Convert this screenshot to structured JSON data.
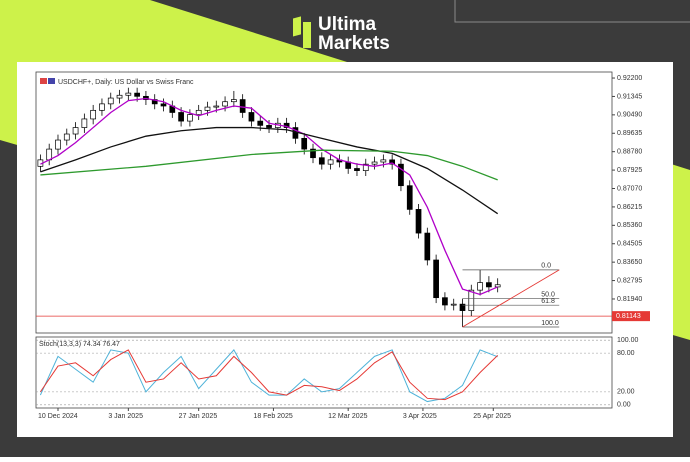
{
  "brand": {
    "line1": "Ultima",
    "line2": "Markets"
  },
  "chart_data": {
    "type": "candlestick",
    "title": "USDCHF+, Daily:  US Dollar vs Swiss Franc",
    "x": [
      -4,
      -2,
      0,
      2,
      4,
      6,
      8,
      10,
      12,
      14,
      16,
      18,
      20,
      22,
      24,
      26,
      28,
      30,
      32,
      34,
      36,
      38,
      40,
      42,
      44,
      46,
      48,
      50,
      52,
      54,
      56,
      58,
      60,
      62,
      64,
      66,
      68,
      70,
      72,
      74,
      76,
      78,
      80,
      82,
      84,
      86,
      88,
      90,
      92,
      94,
      96,
      98,
      100
    ],
    "open": [
      0.881,
      0.884,
      0.889,
      0.8932,
      0.896,
      0.899,
      0.903,
      0.907,
      0.91,
      0.9127,
      0.914,
      0.915,
      0.9135,
      0.912,
      0.91,
      0.909,
      0.906,
      0.902,
      0.905,
      0.907,
      0.9085,
      0.909,
      0.911,
      0.912,
      0.906,
      0.902,
      0.9,
      0.899,
      0.901,
      0.899,
      0.894,
      0.889,
      0.885,
      0.882,
      0.884,
      0.883,
      0.88,
      0.879,
      0.882,
      0.883,
      0.884,
      0.882,
      0.872,
      0.861,
      0.85,
      0.8375,
      0.82,
      0.8166,
      0.817,
      0.814,
      0.8235,
      0.827,
      0.825
    ],
    "high": [
      0.8865,
      0.8915,
      0.8957,
      0.8985,
      0.9015,
      0.9055,
      0.9095,
      0.9125,
      0.9152,
      0.9165,
      0.9175,
      0.9175,
      0.916,
      0.9145,
      0.9125,
      0.9115,
      0.9085,
      0.9075,
      0.9095,
      0.911,
      0.9115,
      0.9135,
      0.916,
      0.9145,
      0.9085,
      0.9045,
      0.9025,
      0.9035,
      0.9035,
      0.9015,
      0.8965,
      0.8915,
      0.8875,
      0.8865,
      0.8865,
      0.8855,
      0.8825,
      0.8845,
      0.8855,
      0.8865,
      0.8865,
      0.8845,
      0.8745,
      0.8635,
      0.8525,
      0.84,
      0.8225,
      0.8195,
      0.8195,
      0.826,
      0.8329,
      0.83,
      0.829
    ],
    "low": [
      0.8785,
      0.8815,
      0.8865,
      0.8907,
      0.8935,
      0.8965,
      0.9005,
      0.9045,
      0.9075,
      0.9102,
      0.9115,
      0.911,
      0.9095,
      0.9075,
      0.9065,
      0.9035,
      0.8995,
      0.8995,
      0.9025,
      0.9045,
      0.906,
      0.9065,
      0.9085,
      0.9035,
      0.8995,
      0.8975,
      0.8965,
      0.8965,
      0.8965,
      0.8915,
      0.8865,
      0.8825,
      0.8795,
      0.8795,
      0.8805,
      0.8775,
      0.8765,
      0.8765,
      0.8795,
      0.8805,
      0.8795,
      0.8695,
      0.8585,
      0.8475,
      0.835,
      0.8175,
      0.8141,
      0.8141,
      0.8064,
      0.8115,
      0.821,
      0.8225,
      0.8225
    ],
    "close": [
      0.884,
      0.889,
      0.8932,
      0.896,
      0.899,
      0.903,
      0.907,
      0.91,
      0.9127,
      0.914,
      0.915,
      0.9135,
      0.912,
      0.91,
      0.909,
      0.906,
      0.902,
      0.905,
      0.907,
      0.9085,
      0.909,
      0.911,
      0.912,
      0.906,
      0.902,
      0.9,
      0.899,
      0.901,
      0.899,
      0.894,
      0.889,
      0.885,
      0.882,
      0.884,
      0.883,
      0.88,
      0.879,
      0.882,
      0.883,
      0.884,
      0.882,
      0.872,
      0.861,
      0.85,
      0.8375,
      0.82,
      0.8166,
      0.817,
      0.814,
      0.8235,
      0.827,
      0.825,
      0.826
    ],
    "xlim": [
      -5,
      126
    ],
    "xticks": [
      {
        "value": 0,
        "label": "10 Dec 2024"
      },
      {
        "value": 16,
        "label": "3 Jan 2025"
      },
      {
        "value": 32,
        "label": "27 Jan 2025"
      },
      {
        "value": 49,
        "label": "18 Feb 2025"
      },
      {
        "value": 66,
        "label": "12 Mar 2025"
      },
      {
        "value": 83,
        "label": "3 Apr 2025"
      },
      {
        "value": 99,
        "label": "25 Apr 2025"
      }
    ],
    "ylim": [
      0.8036,
      0.9248
    ],
    "yticks": [
      {
        "value": 0.922,
        "label": "0.92200"
      },
      0.91345,
      {
        "value": 0.9049,
        "label": "0.90490"
      },
      0.89635,
      {
        "value": 0.8878,
        "label": "0.88780"
      },
      0.87925,
      {
        "value": 0.8707,
        "label": "0.87070"
      },
      0.86215,
      {
        "value": 0.8536,
        "label": "0.85360"
      },
      0.84505,
      {
        "value": 0.8365,
        "label": "0.83650"
      },
      0.82795,
      {
        "value": 0.8194,
        "label": "0.81940"
      }
    ],
    "lines": [
      {
        "color": "#b000c8",
        "x": [
          -4,
          0,
          4,
          8,
          12,
          16,
          20,
          24,
          28,
          32,
          36,
          40,
          44,
          48,
          52,
          56,
          60,
          64,
          68,
          72,
          76,
          80,
          84,
          88,
          92,
          96,
          100
        ],
        "values": [
          0.882,
          0.886,
          0.892,
          0.899,
          0.906,
          0.9115,
          0.9125,
          0.911,
          0.907,
          0.9045,
          0.907,
          0.909,
          0.908,
          0.901,
          0.8995,
          0.896,
          0.889,
          0.884,
          0.882,
          0.881,
          0.8825,
          0.877,
          0.862,
          0.842,
          0.824,
          0.8215,
          0.825
        ]
      },
      {
        "color": "#111111",
        "x": [
          -4,
          4,
          12,
          20,
          28,
          36,
          44,
          52,
          60,
          68,
          76,
          84,
          92,
          100
        ],
        "values": [
          0.8784,
          0.884,
          0.89,
          0.895,
          0.8975,
          0.899,
          0.899,
          0.898,
          0.894,
          0.89,
          0.887,
          0.88,
          0.87,
          0.859
        ]
      },
      {
        "color": "#2e9a2e",
        "x": [
          -4,
          20,
          44,
          60,
          76,
          84,
          92,
          100
        ],
        "values": [
          0.877,
          0.881,
          0.8865,
          0.8885,
          0.888,
          0.886,
          0.881,
          0.8747
        ]
      }
    ],
    "price_marker": {
      "value": 0.81143,
      "label": "0.81143",
      "color": "#e53935"
    },
    "fibonacci": {
      "x": [
        92,
        114
      ],
      "from": 0.8329,
      "to": 0.8064,
      "ratios": [
        {
          "value": 0,
          "label": "0.0"
        },
        {
          "value": 50,
          "label": "50.0"
        },
        {
          "value": 61.8,
          "label": "61.8"
        },
        {
          "value": 100,
          "label": "100.0"
        }
      ]
    },
    "trendline": {
      "x": [
        92,
        114
      ],
      "values": [
        0.8064,
        0.8329
      ],
      "color": "#e53935"
    },
    "stochastic": {
      "label": "Stoch(13,3,3) 74.34 76.47",
      "ylim": [
        -5,
        105
      ],
      "yticks": [
        {
          "value": 100,
          "label": "100.00"
        },
        {
          "value": 80,
          "label": "80.00"
        },
        {
          "value": 20,
          "label": "20.00"
        },
        {
          "value": 0,
          "label": "0.00"
        }
      ],
      "x": [
        -4,
        0,
        4,
        8,
        12,
        16,
        20,
        24,
        28,
        32,
        36,
        40,
        44,
        48,
        52,
        56,
        60,
        64,
        68,
        72,
        76,
        80,
        84,
        88,
        92,
        96,
        100
      ],
      "series": [
        {
          "color": "#4fb3d9",
          "values": [
            15,
            75,
            55,
            35,
            85,
            80,
            20,
            50,
            75,
            25,
            55,
            85,
            35,
            15,
            15,
            40,
            20,
            25,
            50,
            75,
            85,
            20,
            5,
            10,
            30,
            85,
            74.34
          ]
        },
        {
          "color": "#e53935",
          "values": [
            20,
            60,
            65,
            45,
            70,
            85,
            35,
            40,
            65,
            40,
            45,
            75,
            50,
            20,
            15,
            30,
            28,
            22,
            40,
            65,
            82,
            35,
            10,
            8,
            20,
            50,
            76.47
          ]
        }
      ]
    }
  }
}
